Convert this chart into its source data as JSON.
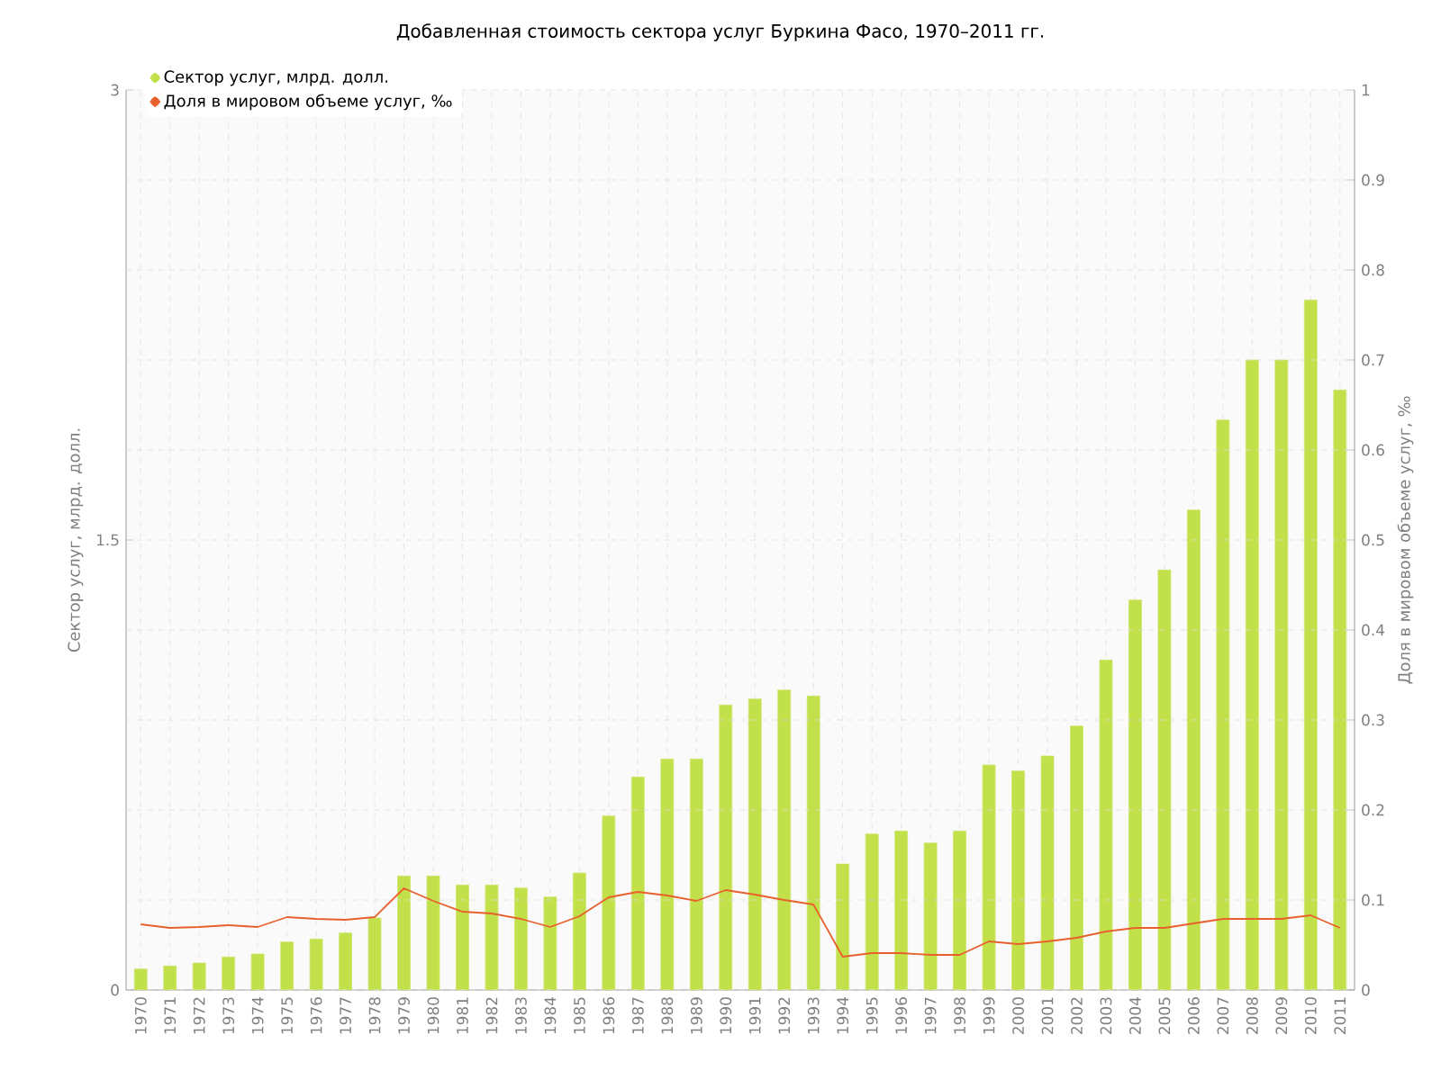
{
  "chart_data": {
    "type": "bar",
    "title": "Добавленная стоимость сектора услуг Буркина Фасо, 1970–2011 гг.",
    "ylabel": "Сектор услуг, млрд. долл.",
    "y2label": "Доля в мировом объеме услуг, ‰",
    "categories": [
      "1970",
      "1971",
      "1972",
      "1973",
      "1974",
      "1975",
      "1976",
      "1977",
      "1978",
      "1979",
      "1980",
      "1981",
      "1982",
      "1983",
      "1984",
      "1985",
      "1986",
      "1987",
      "1988",
      "1989",
      "1990",
      "1991",
      "1992",
      "1993",
      "1994",
      "1995",
      "1996",
      "1997",
      "1998",
      "1999",
      "2000",
      "2001",
      "2002",
      "2003",
      "2004",
      "2005",
      "2006",
      "2007",
      "2008",
      "2009",
      "2010",
      "2011"
    ],
    "series": [
      {
        "name": "Сектор услуг, млрд. долл.",
        "color": "#c2e04a",
        "values": [
          0.07,
          0.08,
          0.09,
          0.11,
          0.12,
          0.16,
          0.17,
          0.19,
          0.24,
          0.38,
          0.38,
          0.35,
          0.35,
          0.34,
          0.31,
          0.39,
          0.58,
          0.71,
          0.77,
          0.77,
          0.95,
          0.97,
          1.0,
          0.98,
          0.42,
          0.52,
          0.53,
          0.49,
          0.53,
          0.75,
          0.73,
          0.78,
          0.88,
          1.1,
          1.3,
          1.4,
          1.6,
          1.9,
          2.1,
          2.1,
          2.3,
          2.0
        ]
      },
      {
        "name": "Доля в мировом объеме услуг, ‰",
        "type": "line",
        "axis": "y2",
        "color": "#e8602c",
        "values": [
          0.073,
          0.069,
          0.07,
          0.072,
          0.07,
          0.081,
          0.079,
          0.078,
          0.081,
          0.113,
          0.099,
          0.087,
          0.085,
          0.079,
          0.07,
          0.082,
          0.103,
          0.109,
          0.105,
          0.099,
          0.111,
          0.106,
          0.1,
          0.095,
          0.037,
          0.041,
          0.041,
          0.039,
          0.039,
          0.054,
          0.051,
          0.054,
          0.058,
          0.065,
          0.069,
          0.069,
          0.074,
          0.079,
          0.079,
          0.079,
          0.083,
          0.069
        ]
      }
    ],
    "ylim": [
      0,
      3
    ],
    "yticks": [
      0,
      1.5,
      3
    ],
    "y2lim": [
      0,
      1
    ],
    "y2ticks": [
      0,
      0.1,
      0.2,
      0.3,
      0.4,
      0.5,
      0.6,
      0.7,
      0.8,
      0.9,
      1
    ],
    "grid": true,
    "legend": "top left"
  }
}
